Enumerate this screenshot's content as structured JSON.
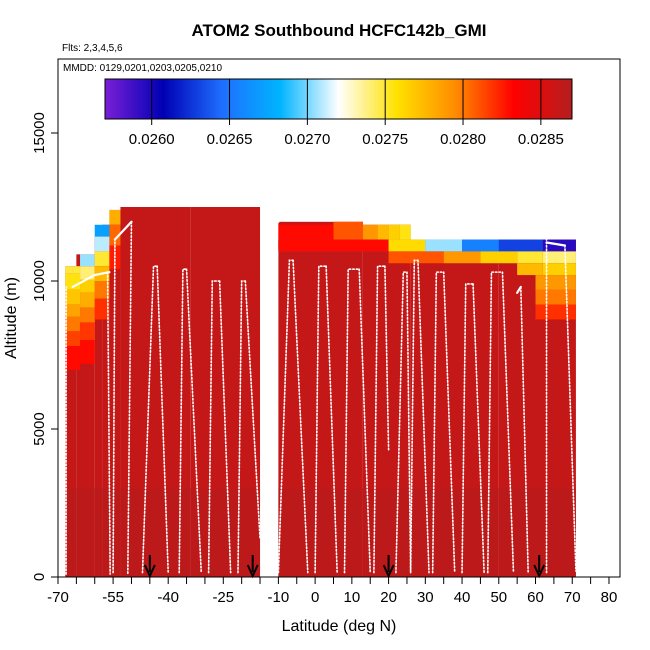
{
  "chart_data": {
    "type": "heatmap",
    "title": "ATOM2 Southbound HCFC142b_GMI",
    "subtitle_flights": "Flts: 2,3,4,5,6",
    "subtitle_dates": "MMDD: 0129,0201,0203,0205,0210",
    "xlabel": "Latitude (deg N)",
    "ylabel": "Altitude (m)",
    "xlim": [
      -70,
      83
    ],
    "ylim": [
      0,
      17500
    ],
    "x_ticks": [
      -70,
      -55,
      -40,
      -25,
      -10,
      0,
      10,
      20,
      30,
      40,
      50,
      60,
      70,
      80
    ],
    "x_minor_ticks": [
      -65,
      -60,
      -50,
      -45,
      -35,
      -30,
      -20,
      -15,
      -5,
      5,
      15,
      25,
      35,
      45,
      55,
      65,
      75
    ],
    "y_ticks": [
      0,
      5000,
      10000,
      15000
    ],
    "colorbar": {
      "min": 0.0257,
      "max": 0.0287,
      "ticks": [
        0.026,
        0.0265,
        0.027,
        0.0275,
        0.028,
        0.0285
      ],
      "tick_labels": [
        "0.0260",
        "0.0265",
        "0.0270",
        "0.0275",
        "0.0280",
        "0.0285"
      ],
      "colors": [
        "#7a1fd6",
        "#0000b4",
        "#1e6eff",
        "#00b4ff",
        "#ffffff",
        "#ffe100",
        "#ff8c00",
        "#ff0000",
        "#b41e1e"
      ],
      "placement": "top inside"
    },
    "background_value": 0.02862,
    "columns": [
      {
        "x": [
          -68,
          -65
        ],
        "bottom": 0,
        "top": 10500
      },
      {
        "x": [
          -65,
          -60
        ],
        "bottom": 0,
        "top": 10900
      },
      {
        "x": [
          -60,
          -58
        ],
        "bottom": 0,
        "top": 11500
      },
      {
        "x": [
          -58,
          -56
        ],
        "bottom": 0,
        "top": 11900
      },
      {
        "x": [
          -56,
          -53
        ],
        "bottom": 0,
        "top": 12400
      },
      {
        "x": [
          -53,
          -34
        ],
        "bottom": 0,
        "top": 12500
      },
      {
        "x": [
          -34,
          -15
        ],
        "bottom": 0,
        "top": 12500
      },
      {
        "x": [
          -10,
          13
        ],
        "bottom": 0,
        "top": 12000
      },
      {
        "x": [
          13,
          26
        ],
        "bottom": 0,
        "top": 11900
      },
      {
        "x": [
          26,
          50
        ],
        "bottom": 0,
        "top": 11400
      },
      {
        "x": [
          50,
          71
        ],
        "bottom": 0,
        "top": 11400
      }
    ],
    "band_values": [
      {
        "x": [
          -68,
          -64
        ],
        "alt": [
          10250,
          10500
        ],
        "value": 0.02748
      },
      {
        "x": [
          -68,
          -64
        ],
        "alt": [
          9700,
          10250
        ],
        "value": 0.02755
      },
      {
        "x": [
          -68,
          -64
        ],
        "alt": [
          9200,
          9700
        ],
        "value": 0.0277
      },
      {
        "x": [
          -68,
          -64
        ],
        "alt": [
          8800,
          9200
        ],
        "value": 0.02785
      },
      {
        "x": [
          -68,
          -64
        ],
        "alt": [
          8300,
          8800
        ],
        "value": 0.028
      },
      {
        "x": [
          -68,
          -64
        ],
        "alt": [
          7800,
          8300
        ],
        "value": 0.02815
      },
      {
        "x": [
          -68,
          -64
        ],
        "alt": [
          7000,
          7800
        ],
        "value": 0.0283
      },
      {
        "x": [
          -64,
          -60
        ],
        "alt": [
          10500,
          10900
        ],
        "value": 0.02705
      },
      {
        "x": [
          -64,
          -60
        ],
        "alt": [
          10050,
          10500
        ],
        "value": 0.0274
      },
      {
        "x": [
          -64,
          -60
        ],
        "alt": [
          9600,
          10050
        ],
        "value": 0.02765
      },
      {
        "x": [
          -64,
          -60
        ],
        "alt": [
          9100,
          9600
        ],
        "value": 0.0278
      },
      {
        "x": [
          -64,
          -60
        ],
        "alt": [
          8600,
          9100
        ],
        "value": 0.028
      },
      {
        "x": [
          -64,
          -60
        ],
        "alt": [
          8000,
          8600
        ],
        "value": 0.02818
      },
      {
        "x": [
          -64,
          -60
        ],
        "alt": [
          7200,
          8000
        ],
        "value": 0.0283
      },
      {
        "x": [
          -60,
          -56
        ],
        "alt": [
          11500,
          11900
        ],
        "value": 0.02672
      },
      {
        "x": [
          -60,
          -56
        ],
        "alt": [
          11000,
          11500
        ],
        "value": 0.0271
      },
      {
        "x": [
          -60,
          -56
        ],
        "alt": [
          10500,
          11000
        ],
        "value": 0.0275
      },
      {
        "x": [
          -60,
          -56
        ],
        "alt": [
          10000,
          10500
        ],
        "value": 0.02775
      },
      {
        "x": [
          -60,
          -56
        ],
        "alt": [
          9400,
          10000
        ],
        "value": 0.028
      },
      {
        "x": [
          -60,
          -56
        ],
        "alt": [
          8700,
          9400
        ],
        "value": 0.0282
      },
      {
        "x": [
          -56,
          -53
        ],
        "alt": [
          11900,
          12400
        ],
        "value": 0.0278
      },
      {
        "x": [
          -56,
          -53
        ],
        "alt": [
          11200,
          11900
        ],
        "value": 0.02805
      },
      {
        "x": [
          -56,
          -53
        ],
        "alt": [
          10400,
          11200
        ],
        "value": 0.02825
      },
      {
        "x": [
          -10,
          13
        ],
        "alt": [
          11100,
          11900
        ],
        "value": 0.0283
      },
      {
        "x": [
          5,
          13
        ],
        "alt": [
          11400,
          12000
        ],
        "value": 0.0281
      },
      {
        "x": [
          13,
          17
        ],
        "alt": [
          11400,
          11900
        ],
        "value": 0.0279
      },
      {
        "x": [
          17,
          20
        ],
        "alt": [
          11400,
          11900
        ],
        "value": 0.02775
      },
      {
        "x": [
          20,
          23
        ],
        "alt": [
          11400,
          11900
        ],
        "value": 0.02765
      },
      {
        "x": [
          23,
          26
        ],
        "alt": [
          11400,
          11900
        ],
        "value": 0.02755
      },
      {
        "x": [
          -10,
          55
        ],
        "alt": [
          11000,
          11400
        ],
        "value": 0.0265
      },
      {
        "x": [
          -10,
          20
        ],
        "alt": [
          11000,
          11400
        ],
        "value": 0.0283
      },
      {
        "x": [
          20,
          30
        ],
        "alt": [
          11000,
          11400
        ],
        "value": 0.0276
      },
      {
        "x": [
          30,
          40
        ],
        "alt": [
          11000,
          11400
        ],
        "value": 0.02705
      },
      {
        "x": [
          40,
          50
        ],
        "alt": [
          11000,
          11400
        ],
        "value": 0.02655
      },
      {
        "x": [
          50,
          62
        ],
        "alt": [
          11000,
          11400
        ],
        "value": 0.0263
      },
      {
        "x": [
          62,
          71
        ],
        "alt": [
          11000,
          11400
        ],
        "value": 0.02595
      },
      {
        "x": [
          20,
          35
        ],
        "alt": [
          10600,
          11000
        ],
        "value": 0.0281
      },
      {
        "x": [
          35,
          45
        ],
        "alt": [
          10600,
          11000
        ],
        "value": 0.0279
      },
      {
        "x": [
          45,
          55
        ],
        "alt": [
          10600,
          11000
        ],
        "value": 0.02765
      },
      {
        "x": [
          55,
          62
        ],
        "alt": [
          10600,
          11000
        ],
        "value": 0.0275
      },
      {
        "x": [
          62,
          71
        ],
        "alt": [
          10600,
          11000
        ],
        "value": 0.0274
      },
      {
        "x": [
          55,
          62
        ],
        "alt": [
          10200,
          10600
        ],
        "value": 0.02775
      },
      {
        "x": [
          62,
          71
        ],
        "alt": [
          10200,
          10600
        ],
        "value": 0.02765
      },
      {
        "x": [
          60,
          71
        ],
        "alt": [
          9700,
          10200
        ],
        "value": 0.0279
      },
      {
        "x": [
          60,
          71
        ],
        "alt": [
          9200,
          9700
        ],
        "value": 0.028
      },
      {
        "x": [
          60,
          71
        ],
        "alt": [
          8700,
          9200
        ],
        "value": 0.0282
      }
    ],
    "profiles": [
      {
        "x": [
          -67.8,
          -67.8
        ],
        "y": [
          100,
          9800
        ]
      },
      {
        "x": [
          -66,
          -60,
          -56
        ],
        "y": [
          9800,
          10200,
          10300
        ]
      },
      {
        "x": [
          -56.5,
          -55.8
        ],
        "y": [
          10300,
          100
        ]
      },
      {
        "x": [
          -55,
          -54.5
        ],
        "y": [
          150,
          11400
        ]
      },
      {
        "x": [
          -54.5,
          -50
        ],
        "y": [
          11400,
          12000
        ]
      },
      {
        "x": [
          -50,
          -51
        ],
        "y": [
          12000,
          100
        ]
      },
      {
        "x": [
          -47,
          -44,
          -43
        ],
        "y": [
          150,
          10500,
          10500
        ]
      },
      {
        "x": [
          -43,
          -40
        ],
        "y": [
          10500,
          150
        ]
      },
      {
        "x": [
          -37,
          -36,
          -35
        ],
        "y": [
          150,
          10400,
          10400
        ]
      },
      {
        "x": [
          -35,
          -31
        ],
        "y": [
          10400,
          150
        ]
      },
      {
        "x": [
          -29,
          -28,
          -26
        ],
        "y": [
          150,
          10000,
          10000
        ]
      },
      {
        "x": [
          -26,
          -23
        ],
        "y": [
          10000,
          150
        ]
      },
      {
        "x": [
          -21,
          -20,
          -19
        ],
        "y": [
          150,
          10000,
          10000
        ]
      },
      {
        "x": [
          -19,
          -15
        ],
        "y": [
          10000,
          1300
        ]
      },
      {
        "x": [
          -14,
          -13
        ],
        "y": [
          7500,
          11900
        ]
      },
      {
        "x": [
          -13,
          -10
        ],
        "y": [
          11900,
          12000
        ]
      },
      {
        "x": [
          -10,
          -7,
          -6
        ],
        "y": [
          150,
          10700,
          10700
        ]
      },
      {
        "x": [
          -6,
          -2
        ],
        "y": [
          10700,
          150
        ]
      },
      {
        "x": [
          0,
          1,
          3
        ],
        "y": [
          150,
          10500,
          10500
        ]
      },
      {
        "x": [
          3,
          6
        ],
        "y": [
          10500,
          150
        ]
      },
      {
        "x": [
          8,
          9,
          12
        ],
        "y": [
          150,
          10400,
          10400
        ]
      },
      {
        "x": [
          12,
          15
        ],
        "y": [
          10400,
          150
        ]
      },
      {
        "x": [
          16,
          17,
          19
        ],
        "y": [
          150,
          10500,
          10500
        ]
      },
      {
        "x": [
          19,
          20
        ],
        "y": [
          10500,
          4300
        ]
      },
      {
        "x": [
          22,
          24,
          25
        ],
        "y": [
          150,
          10300,
          10300
        ]
      },
      {
        "x": [
          25,
          26
        ],
        "y": [
          10300,
          150
        ]
      },
      {
        "x": [
          26,
          27,
          28
        ],
        "y": [
          150,
          10700,
          10700
        ]
      },
      {
        "x": [
          28,
          31
        ],
        "y": [
          10700,
          150
        ]
      },
      {
        "x": [
          32,
          33,
          35
        ],
        "y": [
          150,
          10300,
          10300
        ]
      },
      {
        "x": [
          35,
          38
        ],
        "y": [
          10300,
          150
        ]
      },
      {
        "x": [
          40,
          41,
          43
        ],
        "y": [
          150,
          9900,
          9900
        ]
      },
      {
        "x": [
          43,
          46
        ],
        "y": [
          9900,
          150
        ]
      },
      {
        "x": [
          47,
          48,
          51
        ],
        "y": [
          150,
          10300,
          10300
        ]
      },
      {
        "x": [
          51,
          54
        ],
        "y": [
          10300,
          150
        ]
      },
      {
        "x": [
          55,
          56
        ],
        "y": [
          9600,
          9800
        ]
      },
      {
        "x": [
          56,
          58
        ],
        "y": [
          9800,
          150
        ]
      },
      {
        "x": [
          63,
          63
        ],
        "y": [
          150,
          11400
        ]
      },
      {
        "x": [
          63,
          68
        ],
        "y": [
          11300,
          11200
        ]
      },
      {
        "x": [
          68,
          71
        ],
        "y": [
          11200,
          200
        ]
      }
    ],
    "arrows_x": [
      -45,
      -17,
      20,
      61
    ]
  }
}
